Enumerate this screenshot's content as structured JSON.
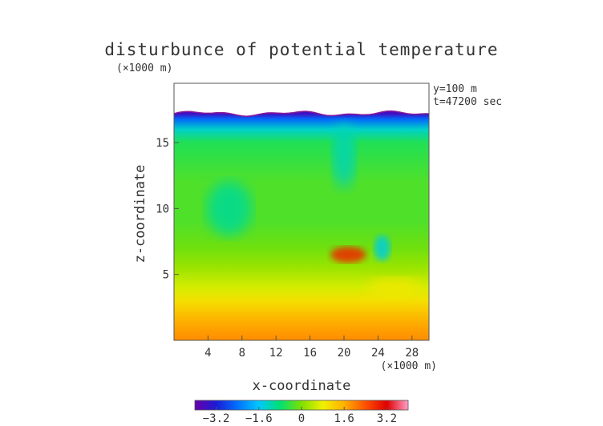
{
  "chart_data": {
    "type": "heatmap",
    "title": "disturbunce of potential temperature",
    "subtitle_left": "(×1000 m)",
    "annotation": [
      "y=100 m",
      "t=47200 sec"
    ],
    "xlabel": "x-coordinate",
    "xunit": "(×1000 m)",
    "ylabel": "z-coordinate",
    "x_ticks": [
      4,
      8,
      12,
      16,
      20,
      24,
      28
    ],
    "y_ticks": [
      5,
      10,
      15
    ],
    "xlim": [
      0,
      30
    ],
    "ylim": [
      0,
      19.5
    ],
    "top_boundary_z": 17.2,
    "colorbar": {
      "range": [
        -4,
        4
      ],
      "ticks": [
        "−3.2",
        "−1.6",
        "0",
        "1.6",
        "3.2"
      ],
      "tick_values": [
        -3.2,
        -1.6,
        0,
        1.6,
        3.2
      ]
    },
    "colormap": [
      "#6a00a8",
      "#1b1bd6",
      "#0070ff",
      "#00c8ff",
      "#00e070",
      "#7fe000",
      "#f0f000",
      "#ffb000",
      "#ff5000",
      "#e00000",
      "#ff9fc8"
    ],
    "vertical_profile": [
      {
        "z": 0.0,
        "value": 1.9
      },
      {
        "z": 1.0,
        "value": 1.7
      },
      {
        "z": 2.0,
        "value": 1.4
      },
      {
        "z": 3.0,
        "value": 1.0
      },
      {
        "z": 4.0,
        "value": 0.6
      },
      {
        "z": 5.5,
        "value": 0.2
      },
      {
        "z": 7.0,
        "value": -0.1
      },
      {
        "z": 9.0,
        "value": -0.3
      },
      {
        "z": 12.0,
        "value": -0.3
      },
      {
        "z": 15.0,
        "value": -0.6
      },
      {
        "z": 16.0,
        "value": -1.3
      },
      {
        "z": 16.8,
        "value": -2.5
      },
      {
        "z": 17.2,
        "value": -3.6
      }
    ],
    "features": [
      {
        "name": "warm-anomaly",
        "x": 20.5,
        "z": 6.5,
        "value": 2.8
      },
      {
        "name": "cool-anomaly-1",
        "x": 24.5,
        "z": 7.0,
        "value": -1.4
      },
      {
        "name": "cool-anomaly-2",
        "x": 20.0,
        "z": 14.0,
        "value": -1.2
      },
      {
        "name": "warm-plume",
        "x": 26.0,
        "z": 4.0,
        "value": 0.9
      },
      {
        "name": "cool-eddy",
        "x": 6.5,
        "z": 10.0,
        "value": -1.0
      }
    ]
  }
}
